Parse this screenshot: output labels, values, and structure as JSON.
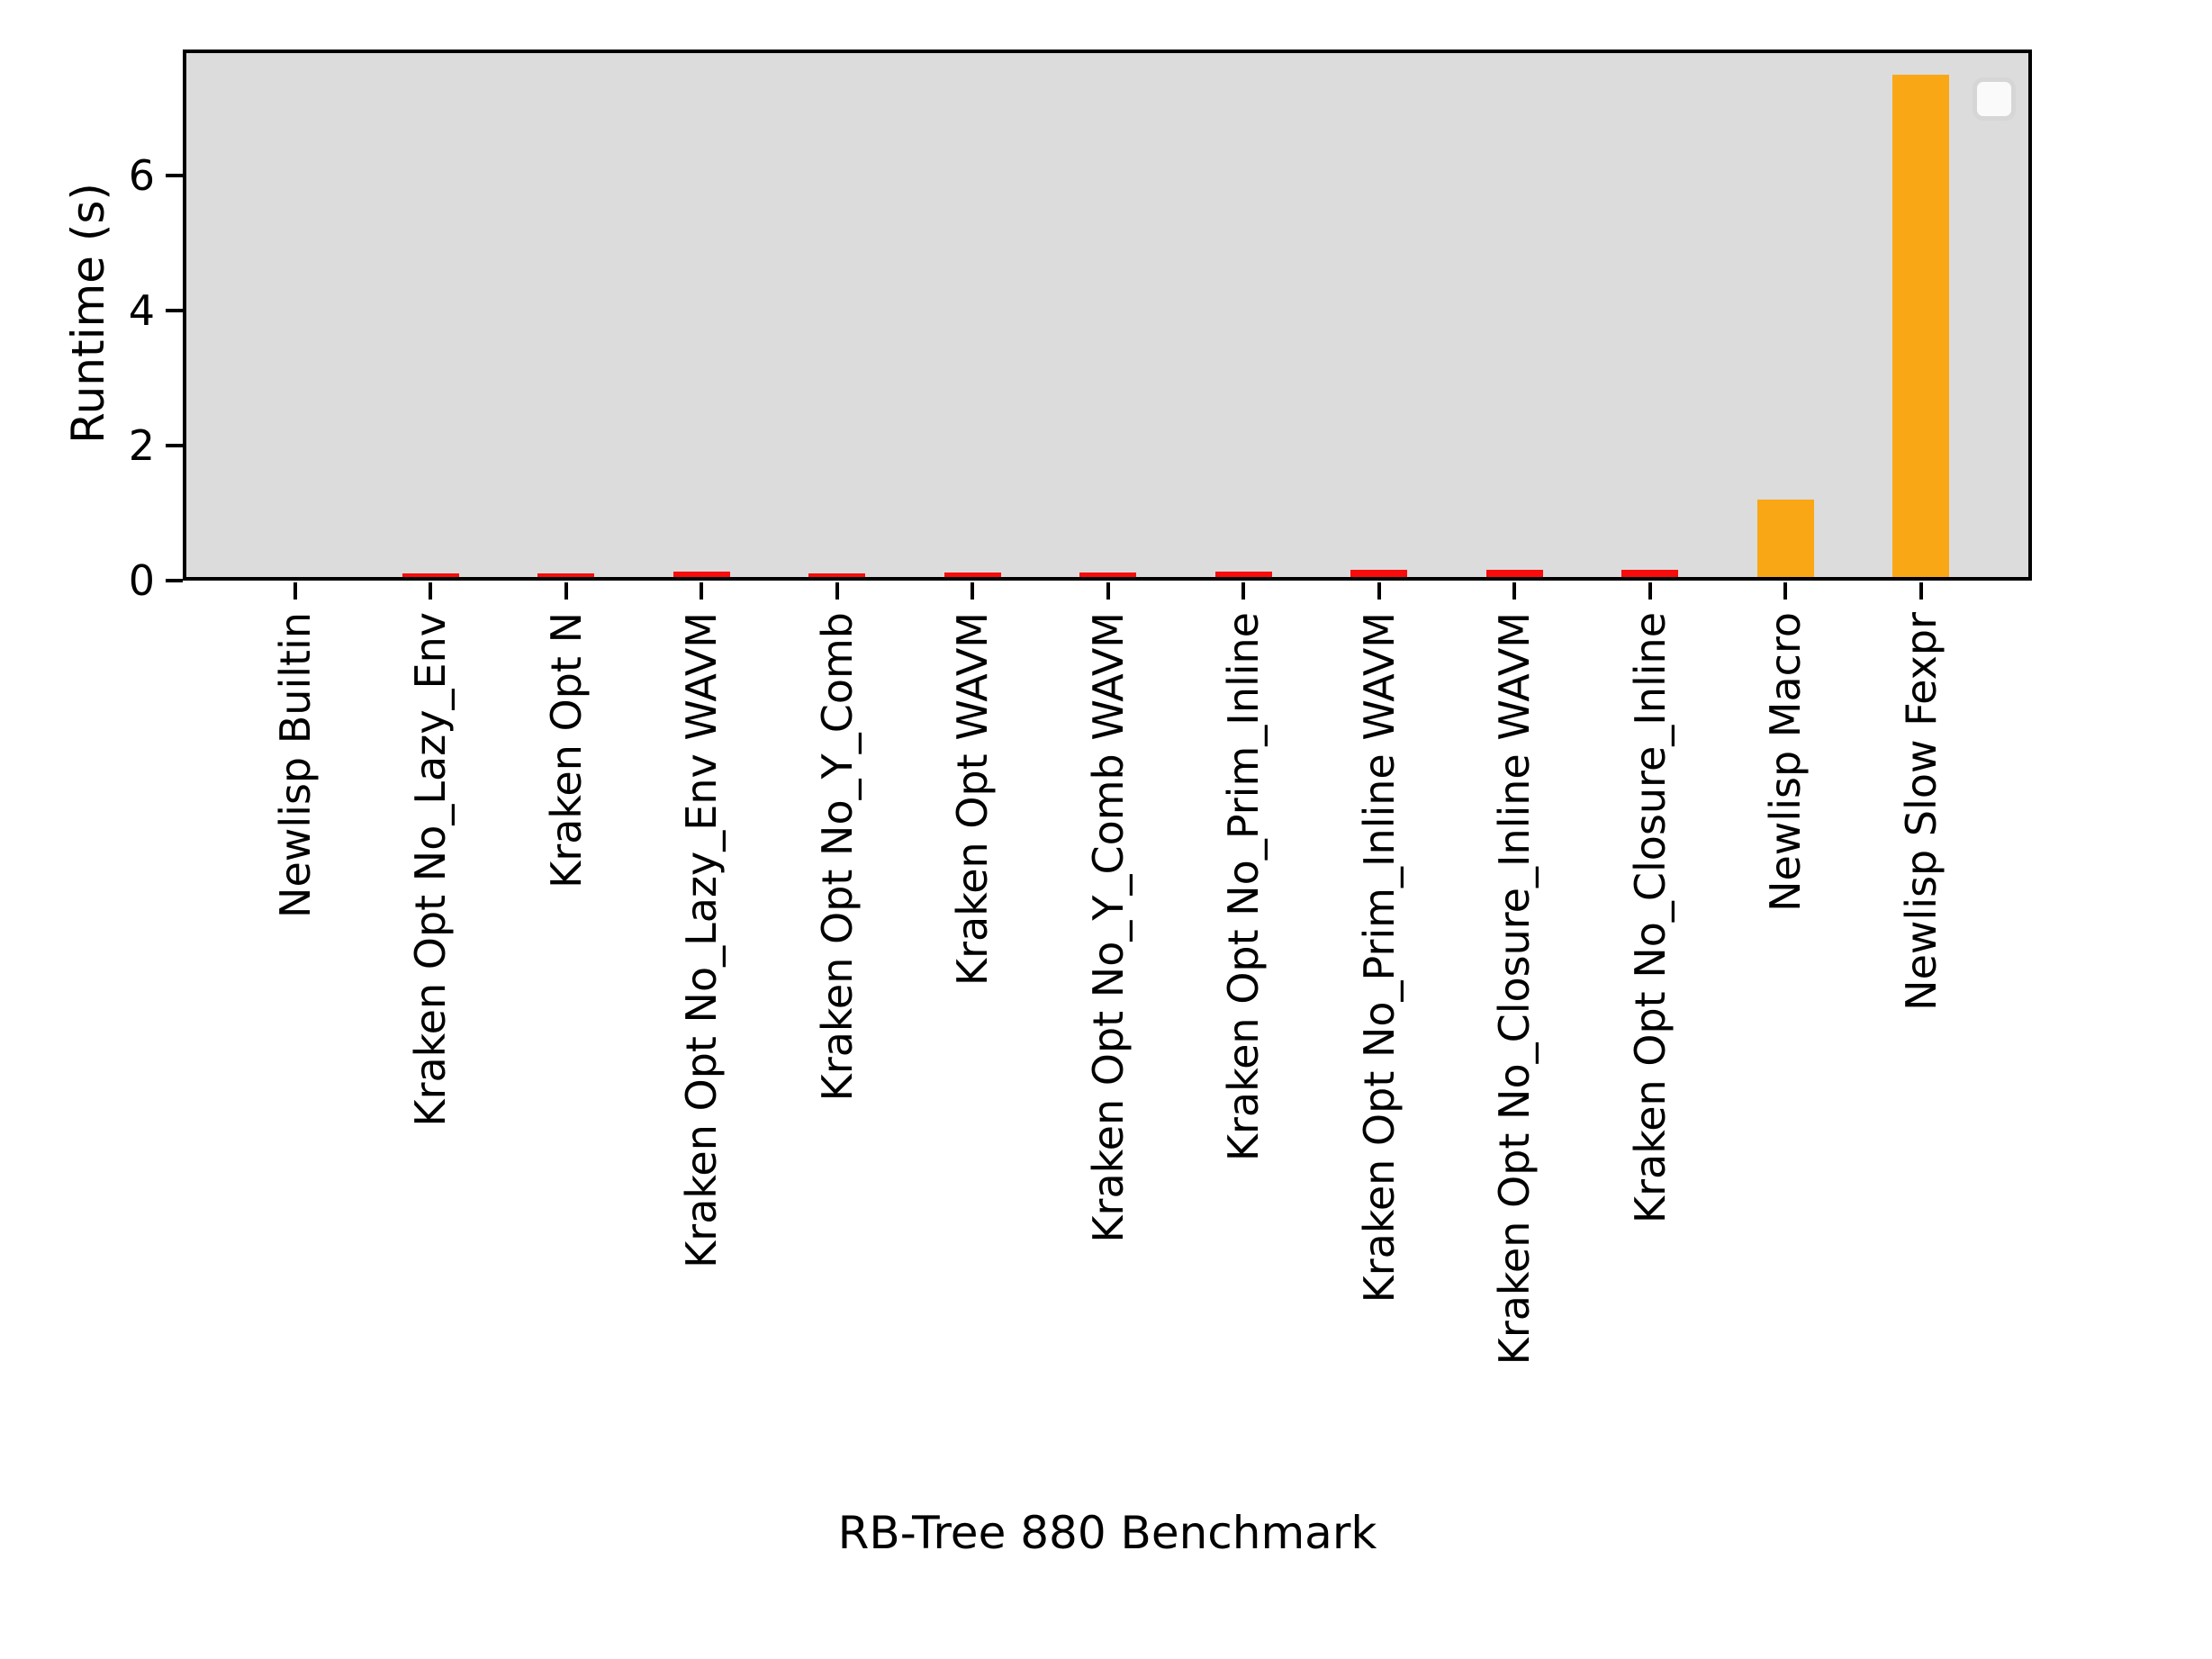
{
  "figure": {
    "title": "",
    "background_color": "#ffffff",
    "plot_background_color": "#dcdcdc",
    "spine_color": "#000000",
    "bar_color_kraken": "#f80c0c",
    "bar_color_newlisp": "#faa716"
  },
  "legend": {
    "visible": true,
    "entries": [],
    "position": "upper-right"
  },
  "chart_data": {
    "type": "bar",
    "title": "",
    "xlabel": "RB-Tree 880 Benchmark",
    "ylabel": "Runtime (s)",
    "ylim": [
      0,
      7.87
    ],
    "yticks": [
      0,
      2,
      4,
      6
    ],
    "grid": false,
    "legend_position": "upper right",
    "categories": [
      "Newlisp Builtin",
      "Kraken Opt No_Lazy_Env",
      "Kraken Opt N",
      "Kraken Opt No_Lazy_Env WAVM",
      "Kraken Opt No_Y_Comb",
      "Kraken Opt WAVM",
      "Kraken Opt No_Y_Comb WAVM",
      "Kraken Opt No_Prim_Inline",
      "Kraken Opt No_Prim_Inline WAVM",
      "Kraken Opt No_Closure_Inline WAVM",
      "Kraken Opt No_Closure_Inline",
      "Newlisp Macro",
      "Newlisp Slow Fexpr"
    ],
    "values": [
      0.01,
      0.08,
      0.085,
      0.1,
      0.085,
      0.095,
      0.09,
      0.11,
      0.13,
      0.13,
      0.13,
      1.17,
      7.47
    ],
    "bar_colors": [
      "#faa716",
      "#f80c0c",
      "#f80c0c",
      "#f80c0c",
      "#f80c0c",
      "#f80c0c",
      "#f80c0c",
      "#f80c0c",
      "#f80c0c",
      "#f80c0c",
      "#f80c0c",
      "#faa716",
      "#faa716"
    ]
  }
}
